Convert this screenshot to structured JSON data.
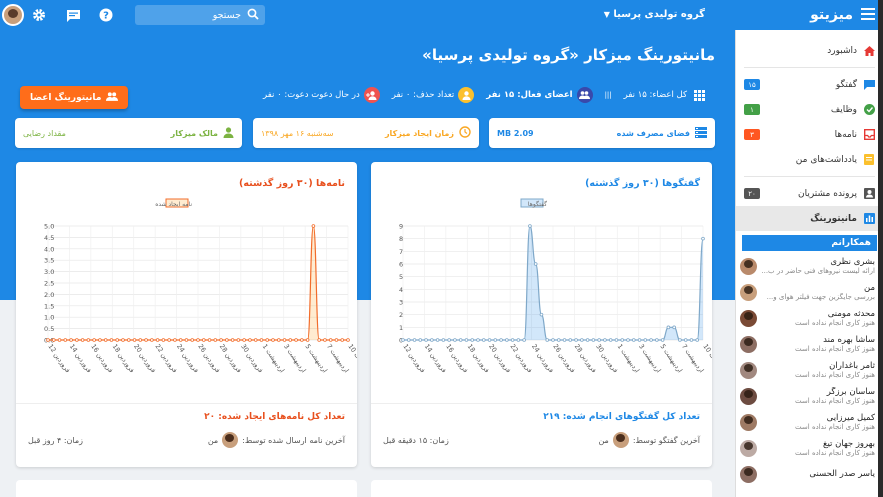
{
  "header": {
    "brand": "میزیتو",
    "org": "گروه تولیدی پرسیا",
    "search_placeholder": "جستجو",
    "icons": [
      "menu-icon",
      "search-icon",
      "help-icon",
      "chat-icon",
      "gear-icon"
    ]
  },
  "sidebar": {
    "items": [
      {
        "label": "داشبورد",
        "icon": "home-icon",
        "color": "#e53935"
      },
      {
        "label": "گفتگو",
        "icon": "chat-icon",
        "color": "#1e88e5",
        "badge": "۱۵",
        "badge_color": "#1e88e5"
      },
      {
        "label": "وظایف",
        "icon": "check-icon",
        "color": "#43a047",
        "badge": "۱",
        "badge_color": "#43a047"
      },
      {
        "label": "نامه‌ها",
        "icon": "inbox-icon",
        "color": "#e53935",
        "badge": "۳",
        "badge_color": "#ff5722"
      },
      {
        "label": "یادداشت‌های من",
        "icon": "note-icon",
        "color": "#fbc02d"
      },
      {
        "label": "پرونده مشتریان",
        "icon": "contact-icon",
        "color": "#555",
        "badge": "۲۰",
        "badge_color": "#555"
      },
      {
        "label": "مانیتورینگ",
        "icon": "chart-icon",
        "color": "#1e88e5",
        "active": true
      }
    ],
    "colleagues_title": "همکارانم",
    "colleagues": [
      {
        "name": "بشری نظری",
        "status": "ارائه لیست نیروهای فنی حاضر در ب...",
        "color": "#b98a6b"
      },
      {
        "name": "من",
        "status": "بررسی جایگزین جهت فیلتر هوای و...",
        "color": "#c89f7c"
      },
      {
        "name": "محدثه مومنی",
        "status": "هنوز کاری انجام نداده است",
        "color": "#7a4a35"
      },
      {
        "name": "ساشا بهره مند",
        "status": "هنوز کاری انجام نداده است",
        "color": "#8d6e63"
      },
      {
        "name": "ثامر باغداران",
        "status": "هنوز کاری انجام نداده است",
        "color": "#a1887f"
      },
      {
        "name": "ساسان برزگر",
        "status": "هنوز کاری انجام نداده است",
        "color": "#6d4c41"
      },
      {
        "name": "کمیل میرزایی",
        "status": "هنوز کاری انجام نداده است",
        "color": "#9e7a64"
      },
      {
        "name": "بهروز جهان تیغ",
        "status": "هنوز کاری انجام نداده است",
        "color": "#bcaaa4"
      },
      {
        "name": "یاسر صدر الحسنی",
        "status": "",
        "color": "#8d6e63"
      }
    ]
  },
  "main": {
    "title": "مانیتورینگ میزکار «گروه تولیدی پرسیا»",
    "stats": [
      {
        "label": "کل اعضاء: ۱۵ نفر",
        "icon": "grid-icon",
        "color": "transparent"
      },
      {
        "label": "|||",
        "icon": "divider-icon",
        "color": "transparent"
      },
      {
        "label": "اعضای فعال: ۱۵ نفر",
        "icon": "group-icon",
        "color": "#3949ab"
      },
      {
        "label": "تعداد حذف: ۰ نفر",
        "icon": "user-icon",
        "color": "#fbc02d"
      },
      {
        "label": "در حال دعوت دعوت: ۰ نفر",
        "icon": "add-user-icon",
        "color": "#ef5350"
      }
    ],
    "monitor_button": "مانیتورینگ اعضا",
    "info_cards": [
      {
        "label": "فضای مصرف شده",
        "value": "MB 2.09",
        "icon": "storage-icon",
        "color": "#1e88e5"
      },
      {
        "label": "زمان ایجاد میزکار",
        "value": "سه‌شنبه ۱۶ مهر ۱۳۹۸",
        "icon": "clock-icon",
        "color": "#f9a825"
      },
      {
        "label": "مالک میزکار",
        "value": "مقداد رضایی",
        "icon": "person-icon",
        "color": "#7cb342"
      }
    ]
  },
  "charts": {
    "chats": {
      "title": "گفتگوها (۳۰ روز گذشته)",
      "legend": "گفتگوها",
      "total": "تعداد کل گفتگوهای انجام شده: ۲۱۹",
      "last_by": "آخرین گفتگو توسط:",
      "last_user": "من",
      "time": "زمان: ۱۵ دقیقه قبل",
      "color": "#1e88e5"
    },
    "letters": {
      "title": "نامه‌ها (۳۰ روز گذشته)",
      "legend": "نامه ایجاد شده",
      "total": "تعداد کل نامه‌های ایجاد شده: ۲۰",
      "last_by": "آخرین نامه ارسال شده توسط:",
      "last_user": "من",
      "time": "زمان: ۴ روز قبل",
      "color": "#e8501e"
    }
  },
  "chart_data": [
    {
      "type": "area",
      "title": "گفتگوها (۳۰ روز گذشته)",
      "xlabel": "",
      "ylabel": "",
      "ylim": [
        0,
        9
      ],
      "yticks": [
        0,
        1,
        2,
        3,
        4,
        5,
        6,
        7,
        8,
        9
      ],
      "x_tick_labels": [
        "12 فروردین",
        "14 فروردین",
        "16 فروردین",
        "18 فروردین",
        "20 فروردین",
        "22 فروردین",
        "24 فروردین",
        "26 فروردین",
        "28 فروردین",
        "30 فروردین",
        "1 اردیبهشت",
        "3 اردیبهشت",
        "5 اردیبهشت",
        "7 اردیبهشت",
        "10 اردیبهشت"
      ],
      "series": [
        {
          "name": "گفتگوها",
          "values": [
            0,
            0,
            0,
            0,
            0,
            0,
            0,
            0,
            0,
            0,
            0,
            0,
            0,
            0,
            0,
            0,
            0,
            0,
            0,
            0,
            0,
            0,
            9,
            6,
            2,
            0,
            0,
            0,
            0,
            0,
            0,
            0,
            0,
            0,
            0,
            0,
            0,
            0,
            0,
            0,
            0,
            0,
            0,
            0,
            0,
            0,
            1,
            1,
            0,
            0,
            0,
            0,
            8
          ]
        }
      ],
      "fill": "rgba(30,136,229,0.2)",
      "line_color": "#7fa8c9"
    },
    {
      "type": "area",
      "title": "نامه‌ها (۳۰ روز گذشته)",
      "xlabel": "",
      "ylabel": "",
      "ylim": [
        0,
        5
      ],
      "yticks": [
        0,
        0.5,
        1,
        1.5,
        2,
        2.5,
        3,
        3.5,
        4,
        4.5,
        5
      ],
      "x_tick_labels": [
        "12 فروردین",
        "14 فروردین",
        "16 فروردین",
        "18 فروردین",
        "20 فروردین",
        "22 فروردین",
        "24 فروردین",
        "26 فروردین",
        "28 فروردین",
        "30 فروردین",
        "1 اردیبهشت",
        "3 اردیبهشت",
        "5 اردیبهشت",
        "7 اردیبهشت",
        "10 اردیبهشت"
      ],
      "series": [
        {
          "name": "نامه ایجاد شده",
          "values": [
            0,
            0,
            0,
            0,
            0,
            0,
            0,
            0,
            0,
            0,
            0,
            0,
            0,
            0,
            0,
            0,
            0,
            0,
            0,
            0,
            0,
            0,
            0,
            0,
            0,
            0,
            0,
            0,
            0,
            0,
            0,
            0,
            0,
            0,
            0,
            0,
            0,
            0,
            0,
            0,
            0,
            0,
            0,
            0,
            0,
            0,
            5,
            0,
            0,
            0,
            0,
            0,
            0
          ]
        }
      ],
      "fill": "rgba(255,152,0,0.18)",
      "line_color": "#f26d2b"
    }
  ]
}
